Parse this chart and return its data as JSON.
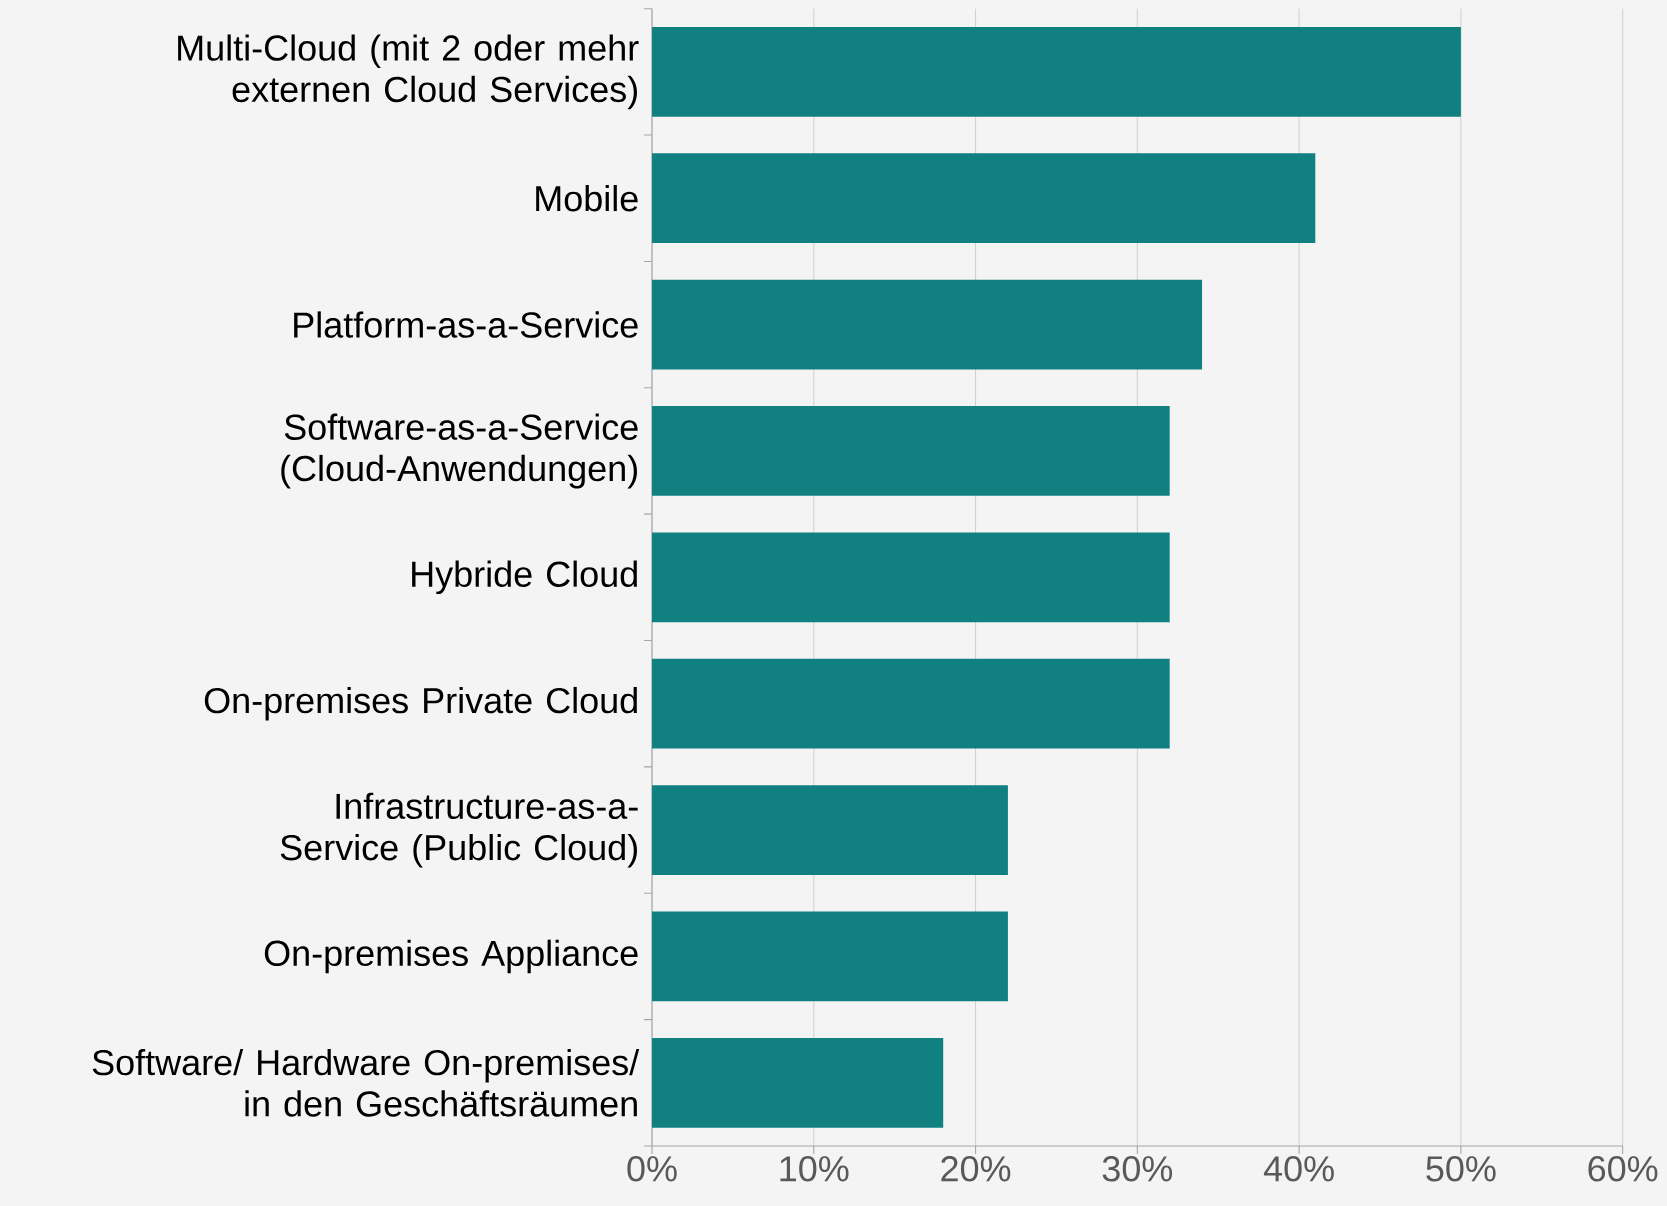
{
  "chart_data": {
    "type": "bar",
    "orientation": "horizontal",
    "categories": [
      "Multi-Cloud (mit 2 oder mehr externen Cloud Services)",
      "Mobile",
      "Platform-as-a-Service",
      "Software-as-a-Service (Cloud-Anwendungen)",
      "Hybride Cloud",
      "On-premises Private Cloud",
      "Infrastructure-as-a-Service (Public Cloud)",
      "On-premises Appliance",
      "Software/ Hardware On-premises/ in den Geschäftsräumen"
    ],
    "values": [
      50,
      41,
      34,
      32,
      32,
      32,
      22,
      22,
      18
    ],
    "color": "#108080",
    "xlim": [
      0,
      60
    ],
    "xticks": [
      {
        "value": 0,
        "label": "0%"
      },
      {
        "value": 10,
        "label": "10%"
      },
      {
        "value": 20,
        "label": "20%"
      },
      {
        "value": 30,
        "label": "30%"
      },
      {
        "value": 40,
        "label": "40%"
      },
      {
        "value": 50,
        "label": "50%"
      },
      {
        "value": 60,
        "label": "60%"
      }
    ],
    "grid": "x"
  }
}
